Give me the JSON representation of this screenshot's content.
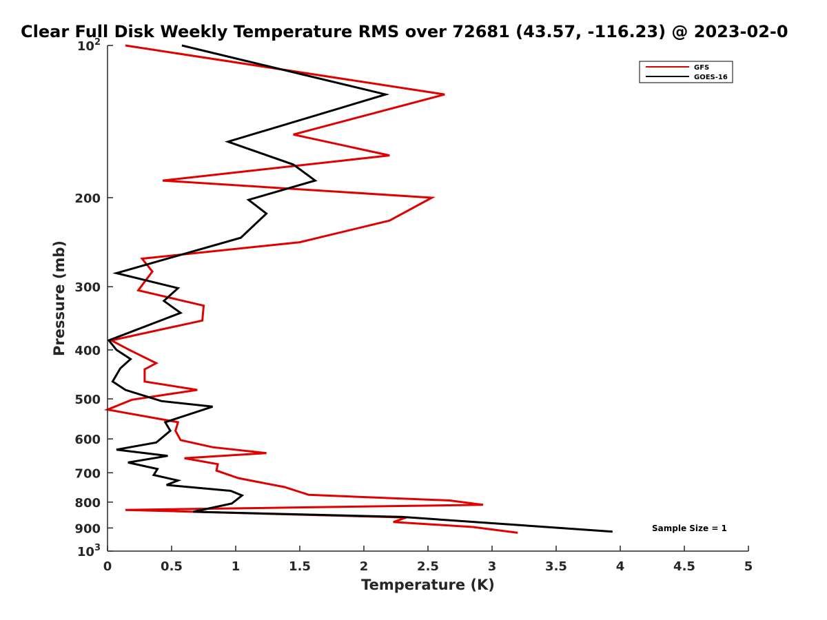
{
  "chart_data": {
    "type": "line",
    "orientation": "vertical-profile",
    "title": "Clear Full Disk Weekly Temperature RMS over 72681 (43.57, -116.23) @ 2023-02-0",
    "xlabel": "Temperature (K)",
    "ylabel": "Pressure (mb)",
    "xlim": [
      0,
      5
    ],
    "ylim": [
      100,
      1000
    ],
    "y_scale": "log",
    "y_reversed": true,
    "x_ticks": [
      "0",
      "0.5",
      "1",
      "1.5",
      "2",
      "2.5",
      "3",
      "3.5",
      "4",
      "4.5",
      "5"
    ],
    "y_ticks": [
      {
        "value": 100,
        "base": "10",
        "exp": "2"
      },
      {
        "value": 200,
        "label": "200"
      },
      {
        "value": 300,
        "label": "300"
      },
      {
        "value": 400,
        "label": "400"
      },
      {
        "value": 500,
        "label": "500"
      },
      {
        "value": 600,
        "label": "600"
      },
      {
        "value": 700,
        "label": "700"
      },
      {
        "value": 800,
        "label": "800"
      },
      {
        "value": 900,
        "label": "900"
      },
      {
        "value": 1000,
        "base": "10",
        "exp": "3"
      }
    ],
    "legend_position": "top-right",
    "annotation": "Sample Size = 1",
    "grid": false,
    "series": [
      {
        "name": "GFS",
        "color": "#e00000",
        "points": [
          [
            0.14,
            100
          ],
          [
            2.63,
            125
          ],
          [
            1.45,
            150
          ],
          [
            2.2,
            165
          ],
          [
            0.43,
            185
          ],
          [
            2.53,
            200
          ],
          [
            2.2,
            222
          ],
          [
            1.5,
            245
          ],
          [
            0.27,
            264
          ],
          [
            0.35,
            280
          ],
          [
            0.24,
            305
          ],
          [
            0.75,
            327
          ],
          [
            0.74,
            350
          ],
          [
            0.03,
            383
          ],
          [
            0.17,
            400
          ],
          [
            0.38,
            425
          ],
          [
            0.29,
            437
          ],
          [
            0.29,
            462
          ],
          [
            0.7,
            480
          ],
          [
            0.19,
            502
          ],
          [
            0.0,
            525
          ],
          [
            0.55,
            556
          ],
          [
            0.53,
            578
          ],
          [
            0.57,
            603
          ],
          [
            0.82,
            623
          ],
          [
            1.24,
            640
          ],
          [
            0.6,
            655
          ],
          [
            0.86,
            673
          ],
          [
            0.85,
            693
          ],
          [
            1.02,
            717
          ],
          [
            1.38,
            747
          ],
          [
            1.57,
            774
          ],
          [
            2.67,
            794
          ],
          [
            2.93,
            810
          ],
          [
            0.14,
            829
          ],
          [
            2.33,
            858
          ],
          [
            2.23,
            876
          ],
          [
            2.85,
            896
          ],
          [
            3.2,
            920
          ]
        ]
      },
      {
        "name": "GOES-16",
        "color": "#000000",
        "points": [
          [
            0.58,
            100
          ],
          [
            2.17,
            125
          ],
          [
            0.94,
            155
          ],
          [
            1.45,
            172
          ],
          [
            1.62,
            185
          ],
          [
            1.1,
            202
          ],
          [
            1.24,
            215
          ],
          [
            1.04,
            240
          ],
          [
            0.07,
            282
          ],
          [
            0.55,
            302
          ],
          [
            0.44,
            320
          ],
          [
            0.57,
            338
          ],
          [
            0.01,
            383
          ],
          [
            0.07,
            400
          ],
          [
            0.18,
            417
          ],
          [
            0.1,
            435
          ],
          [
            0.04,
            462
          ],
          [
            0.14,
            480
          ],
          [
            0.42,
            505
          ],
          [
            0.82,
            518
          ],
          [
            0.45,
            556
          ],
          [
            0.49,
            578
          ],
          [
            0.38,
            610
          ],
          [
            0.07,
            630
          ],
          [
            0.47,
            648
          ],
          [
            0.16,
            668
          ],
          [
            0.39,
            688
          ],
          [
            0.36,
            707
          ],
          [
            0.55,
            725
          ],
          [
            0.46,
            740
          ],
          [
            0.96,
            760
          ],
          [
            1.05,
            776
          ],
          [
            0.97,
            805
          ],
          [
            0.67,
            836
          ],
          [
            2.3,
            856
          ],
          [
            3.94,
            915
          ]
        ]
      }
    ]
  }
}
